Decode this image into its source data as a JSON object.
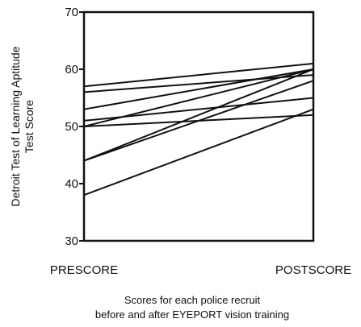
{
  "chart_data": {
    "type": "line",
    "title": "",
    "categories": [
      "PRESCORE",
      "POSTSCORE"
    ],
    "ylabel_lines": [
      "Detroit Test of Learning Aptitude",
      "Test Score"
    ],
    "xlabel_lines": [
      "Scores for each police recruit",
      "before and after EYEPORT vision training"
    ],
    "ylim": [
      30,
      70
    ],
    "yticks": [
      30,
      40,
      50,
      60,
      70
    ],
    "grid": false,
    "line_color": "#111111",
    "series": [
      {
        "values": [
          57,
          61
        ]
      },
      {
        "values": [
          56,
          59
        ]
      },
      {
        "values": [
          53,
          60
        ]
      },
      {
        "values": [
          51,
          55
        ]
      },
      {
        "values": [
          50,
          52
        ]
      },
      {
        "values": [
          50,
          60
        ]
      },
      {
        "values": [
          44,
          60
        ]
      },
      {
        "values": [
          44,
          58
        ]
      },
      {
        "values": [
          38,
          53
        ]
      }
    ]
  }
}
